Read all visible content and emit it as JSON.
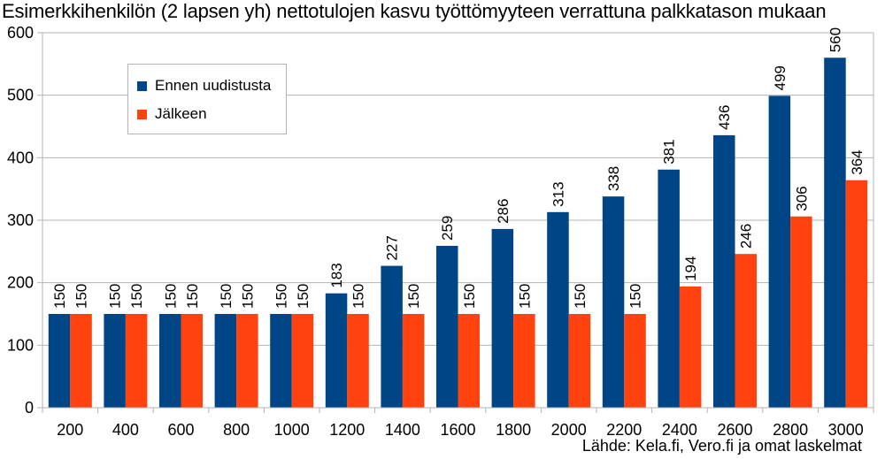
{
  "chart_data": {
    "type": "bar",
    "title": "Esimerkkihenkilön (2 lapsen yh) nettotulojen kasvu työttömyyteen verrattuna palkkatason mukaan",
    "source": "Lähde: Kela.fi, Vero.fi ja omat laskelmat",
    "categories": [
      "200",
      "400",
      "600",
      "800",
      "1000",
      "1200",
      "1400",
      "1600",
      "1800",
      "2000",
      "2200",
      "2400",
      "2600",
      "2800",
      "3000"
    ],
    "series": [
      {
        "name": "Ennen uudistusta",
        "color": "#004586",
        "values": [
          150,
          150,
          150,
          150,
          150,
          183,
          227,
          259,
          286,
          313,
          338,
          381,
          436,
          499,
          560
        ]
      },
      {
        "name": "Jälkeen",
        "color": "#ff420e",
        "values": [
          150,
          150,
          150,
          150,
          150,
          150,
          150,
          150,
          150,
          150,
          150,
          194,
          246,
          306,
          364
        ]
      }
    ],
    "ylim": [
      0,
      600
    ],
    "yticks": [
      0,
      100,
      200,
      300,
      400,
      500,
      600
    ],
    "grid": true,
    "legend_position": "top-left",
    "data_labels": true
  }
}
